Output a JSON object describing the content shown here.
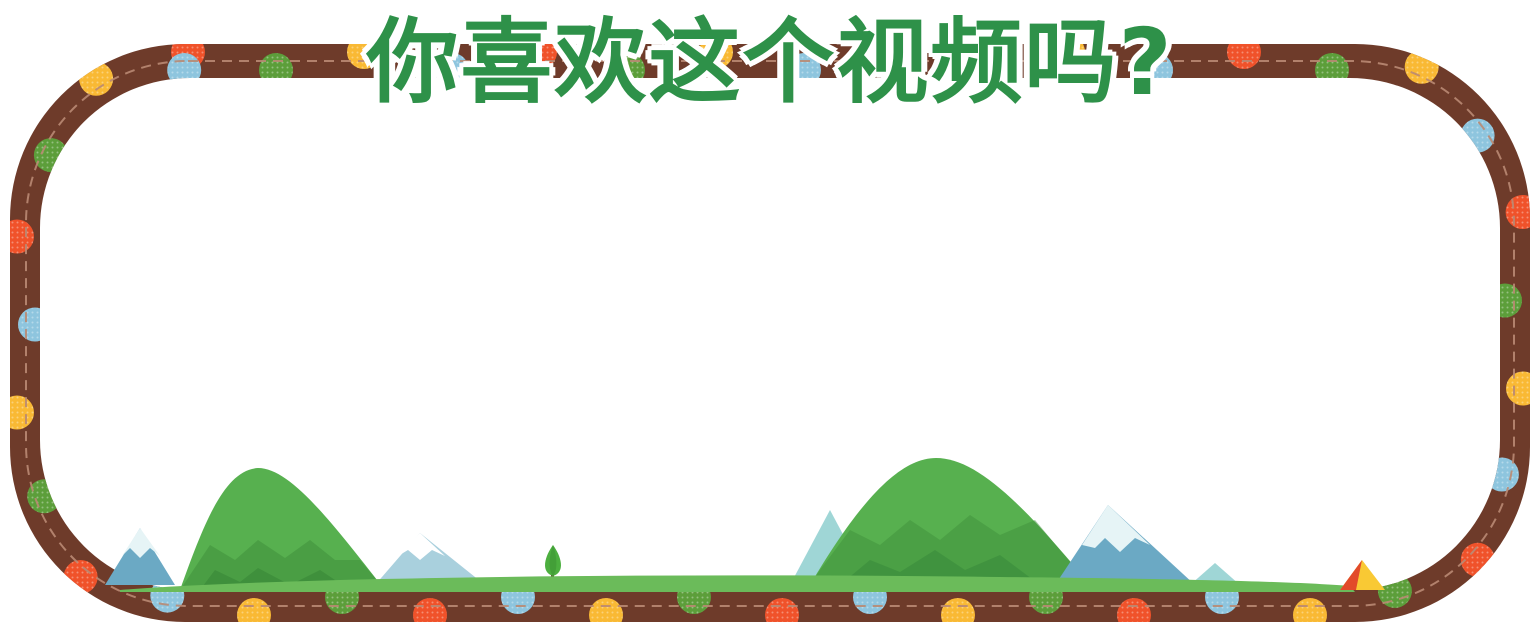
{
  "title": "你喜欢这个视频吗?",
  "colors": {
    "frame": "#6e3b2a",
    "title": "#2e9149",
    "dot_red": "#f0522a",
    "dot_yellow": "#f9b934",
    "dot_green": "#5c9e3a",
    "dot_blue": "#8ec5de",
    "hill_green": "#57b04f",
    "hill_dark": "#3f8f3c",
    "snow_mountain": "#6ba9c4",
    "ground": "#6bbb5a"
  },
  "decor": {
    "border": "polka-dot-frame",
    "scenery": [
      "green-hill",
      "snowy-mountain",
      "tree-icon",
      "tent-icon"
    ]
  }
}
